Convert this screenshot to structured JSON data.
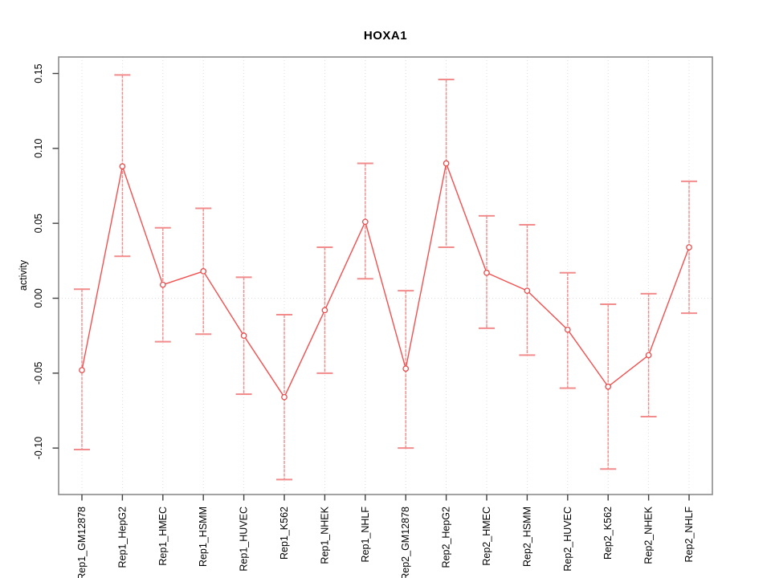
{
  "chart_data": {
    "type": "line",
    "title": "HOXA1",
    "ylabel": "activity",
    "xlabel": "",
    "categories": [
      "Rep1_GM12878",
      "Rep1_HepG2",
      "Rep1_HMEC",
      "Rep1_HSMM",
      "Rep1_HUVEC",
      "Rep1_K562",
      "Rep1_NHEK",
      "Rep1_NHLF",
      "Rep2_GM12878",
      "Rep2_HepG2",
      "Rep2_HMEC",
      "Rep2_HSMM",
      "Rep2_HUVEC",
      "Rep2_K562",
      "Rep2_NHEK",
      "Rep2_NHLF"
    ],
    "series": [
      {
        "name": "activity",
        "marker": "open-circle",
        "values": [
          -0.048,
          0.088,
          0.009,
          0.018,
          -0.025,
          -0.066,
          -0.008,
          0.051,
          -0.047,
          0.09,
          0.017,
          0.005,
          -0.021,
          -0.059,
          -0.038,
          0.034
        ],
        "error_high": [
          0.006,
          0.149,
          0.047,
          0.06,
          0.014,
          -0.011,
          0.034,
          0.09,
          0.005,
          0.146,
          0.055,
          0.049,
          0.017,
          -0.004,
          0.003,
          0.078
        ],
        "error_low": [
          -0.101,
          0.028,
          -0.029,
          -0.024,
          -0.064,
          -0.121,
          -0.05,
          0.013,
          -0.1,
          0.034,
          -0.02,
          -0.038,
          -0.06,
          -0.114,
          -0.079,
          -0.01
        ]
      }
    ],
    "yticks": [
      0.15,
      0.1,
      0.05,
      0.0,
      -0.05,
      -0.1
    ],
    "ytick_labels": [
      "0.15",
      "0.10",
      "0.05",
      "0.00",
      "-0.05",
      "-0.10"
    ],
    "ylim": [
      -0.131,
      0.161
    ],
    "grid": "dotted vertical line at every category; dotted horizontal line at zero",
    "legend_position": "none",
    "colors": {
      "line": "#f44f4f",
      "marker": "#e74c4c",
      "error_bar": "#f28b8b",
      "grid": "#dcdcdc",
      "box": "#8c8c8c",
      "tick": "#404040",
      "text": "#000000",
      "background": "#ffffff"
    }
  }
}
